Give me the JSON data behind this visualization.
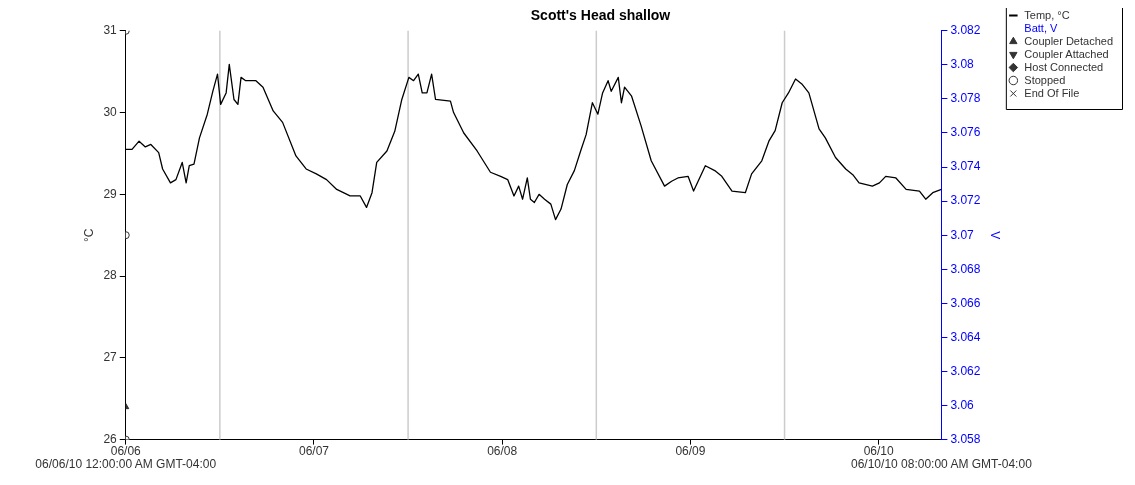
{
  "chart_data": {
    "type": "line",
    "title": "Scott's Head shallow",
    "ylabel": "°C",
    "y2label": "V",
    "xlim": [
      "--06-06T00:00",
      "--06-10T08:00"
    ],
    "xticks": [
      {
        "value": "--06-06T00:00",
        "label": "06/06"
      },
      {
        "value": "--06-07T00:00",
        "label": "06/07"
      },
      {
        "value": "--06-08T00:00",
        "label": "06/08"
      },
      {
        "value": "--06-09T00:00",
        "label": "06/09"
      },
      {
        "value": "--06-10T00:00",
        "label": "06/10"
      }
    ],
    "ylim": [
      26,
      31
    ],
    "yticks": [
      26,
      27,
      28,
      29,
      30,
      31
    ],
    "y2lim": [
      3.058,
      3.082
    ],
    "y2ticks": [
      3.058,
      3.06,
      3.062,
      3.064,
      3.066,
      3.068,
      3.07,
      3.072,
      3.074,
      3.076,
      3.078,
      3.08,
      3.082
    ],
    "legend": "right",
    "ref_lines": [
      {
        "axis": "x",
        "value": "--06-06T12:00",
        "color": "#cccccc"
      },
      {
        "axis": "x",
        "value": "--06-07T12:00",
        "color": "#cccccc"
      },
      {
        "axis": "x",
        "value": "--06-08T12:00",
        "color": "#cccccc"
      },
      {
        "axis": "x",
        "value": "--06-09T12:00",
        "color": "#cccccc"
      }
    ],
    "annotations": [
      "06/06/10 12:00:00 AM GMT-04:00",
      "06/10/10 08:00:00 AM GMT-04:00"
    ],
    "series": [
      {
        "name": "Temp, °C",
        "color": "#000000",
        "marker": "none",
        "x": [
          "--06-06T00:00",
          "--06-06T00:48",
          "--06-06T01:42",
          "--06-06T02:30",
          "--06-06T03:12",
          "--06-06T04:12",
          "--06-06T04:42",
          "--06-06T05:42",
          "--06-06T06:24",
          "--06-06T07:12",
          "--06-06T07:42",
          "--06-06T08:06",
          "--06-06T08:42",
          "--06-06T09:24",
          "--06-06T10:24",
          "--06-06T11:06",
          "--06-06T11:42",
          "--06-06T12:06",
          "--06-06T12:48",
          "--06-06T13:12",
          "--06-06T13:48",
          "--06-06T14:18",
          "--06-06T14:42",
          "--06-06T15:18",
          "--06-06T16:36",
          "--06-06T17:30",
          "--06-06T18:48",
          "--06-06T20:00",
          "--06-06T21:42",
          "--06-06T23:00",
          "--06-07T00:18",
          "--06-07T01:36",
          "--06-07T02:54",
          "--06-07T04:36",
          "--06-07T05:54",
          "--06-07T06:42",
          "--06-07T07:24",
          "--06-07T08:00",
          "--06-07T09:18",
          "--06-07T10:18",
          "--06-07T11:12",
          "--06-07T12:06",
          "--06-07T12:42",
          "--06-07T13:18",
          "--06-07T13:48",
          "--06-07T14:24",
          "--06-07T15:00",
          "--06-07T15:30",
          "--06-07T17:24",
          "--06-07T17:48",
          "--06-07T19:06",
          "--06-07T20:48",
          "--06-07T22:30",
          "--06-07T23:48",
          "--06-08T00:42",
          "--06-08T01:30",
          "--06-08T02:06",
          "--06-08T02:36",
          "--06-08T03:12",
          "--06-08T03:36",
          "--06-08T04:06",
          "--06-08T04:42",
          "--06-08T05:24",
          "--06-08T06:12",
          "--06-08T06:48",
          "--06-08T07:30",
          "--06-08T08:18",
          "--06-08T09:12",
          "--06-08T10:00",
          "--06-08T10:42",
          "--06-08T11:30",
          "--06-08T12:12",
          "--06-08T12:48",
          "--06-08T13:30",
          "--06-08T13:54",
          "--06-08T14:48",
          "--06-08T15:12",
          "--06-08T15:36",
          "--06-08T16:30",
          "--06-08T17:42",
          "--06-08T19:00",
          "--06-08T20:42",
          "--06-08T21:36",
          "--06-08T22:24",
          "--06-08T23:42",
          "--06-09T00:24",
          "--06-09T01:54",
          "--06-09T03:06",
          "--06-09T04:00",
          "--06-09T05:18",
          "--06-09T07:00",
          "--06-09T07:48",
          "--06-09T09:06",
          "--06-09T10:00",
          "--06-09T10:48",
          "--06-09T11:42",
          "--06-09T12:30",
          "--06-09T13:24",
          "--06-09T14:12",
          "--06-09T15:06",
          "--06-09T16:24",
          "--06-09T17:12",
          "--06-09T18:30",
          "--06-09T19:48",
          "--06-09T20:42",
          "--06-09T21:30",
          "--06-09T23:12",
          "--06-10T00:06",
          "--06-10T00:54",
          "--06-10T02:12",
          "--06-10T03:30",
          "--06-10T05:12",
          "--06-10T06:00",
          "--06-10T06:54",
          "--06-10T08:00"
        ],
        "values": [
          29.55,
          29.55,
          29.65,
          29.58,
          29.61,
          29.51,
          29.31,
          29.14,
          29.18,
          29.39,
          29.14,
          29.35,
          29.37,
          29.69,
          29.98,
          30.26,
          30.47,
          30.1,
          30.24,
          30.59,
          30.16,
          30.1,
          30.43,
          30.39,
          30.39,
          30.31,
          30.02,
          29.88,
          29.47,
          29.31,
          29.25,
          29.18,
          29.06,
          28.98,
          28.98,
          28.84,
          29.02,
          29.39,
          29.53,
          29.77,
          30.16,
          30.43,
          30.39,
          30.47,
          30.24,
          30.24,
          30.47,
          30.16,
          30.14,
          30,
          29.75,
          29.53,
          29.27,
          29.22,
          29.18,
          28.98,
          29.1,
          28.94,
          29.2,
          28.94,
          28.9,
          29,
          28.94,
          28.88,
          28.69,
          28.82,
          29.12,
          29.29,
          29.53,
          29.73,
          30.12,
          29.98,
          30.24,
          30.39,
          30.26,
          30.43,
          30.12,
          30.31,
          30.2,
          29.84,
          29.41,
          29.1,
          29.16,
          29.2,
          29.22,
          29.04,
          29.35,
          29.29,
          29.22,
          29.04,
          29.02,
          29.25,
          29.41,
          29.65,
          29.78,
          30.12,
          30.24,
          30.41,
          30.35,
          30.24,
          29.8,
          29.69,
          29.45,
          29.31,
          29.24,
          29.14,
          29.1,
          29.14,
          29.22,
          29.2,
          29.06,
          29.04,
          28.94,
          29.02,
          29.06
        ]
      },
      {
        "name": "Batt, V",
        "axis": "y2",
        "color": "#0000ff",
        "marker": "none"
      },
      {
        "name": "Coupler Detached",
        "type": "scatter",
        "color": "#333333",
        "marker": "triangle",
        "x": [
          "--06-06T00:00"
        ],
        "values": [
          26.4
        ]
      },
      {
        "name": "Coupler Attached",
        "type": "scatter",
        "color": "#333333",
        "marker": "triangle-down"
      },
      {
        "name": "Host Connected",
        "type": "scatter",
        "color": "#333333",
        "marker": "diamond"
      },
      {
        "name": "Stopped",
        "type": "scatter",
        "color": "#333333",
        "marker": "circle",
        "x": [
          "--06-06T00:00",
          "--06-06T00:00",
          "--06-06T00:00"
        ],
        "values": [
          31,
          28.5,
          26
        ]
      },
      {
        "name": "End Of File",
        "type": "scatter",
        "color": "#333333",
        "marker": "cross"
      }
    ]
  }
}
